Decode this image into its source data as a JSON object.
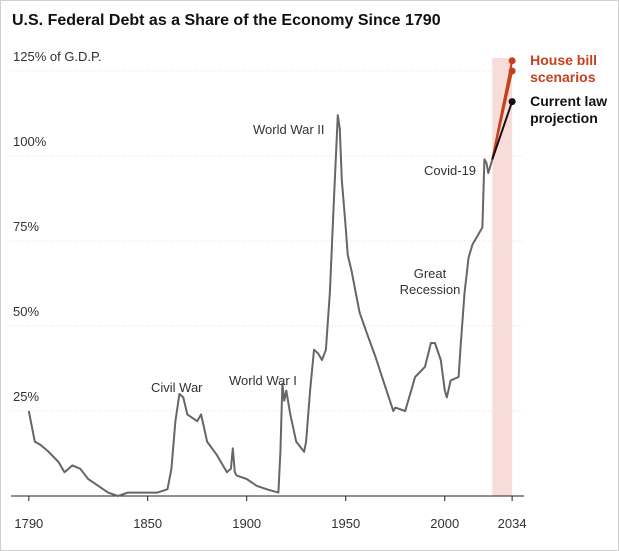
{
  "chart_data": {
    "type": "line",
    "title": "U.S. Federal Debt as a Share of the Economy Since 1790",
    "xlim": [
      1781,
      2040
    ],
    "ylim": [
      0,
      130
    ],
    "xticks": [
      1790,
      1850,
      1900,
      1950,
      2000,
      2034
    ],
    "yticks": [
      {
        "value": 25,
        "label": "25%"
      },
      {
        "value": 50,
        "label": "50%"
      },
      {
        "value": 75,
        "label": "75%"
      },
      {
        "value": 100,
        "label": "100%"
      },
      {
        "value": 125,
        "label": "125% of G.D.P."
      }
    ],
    "grid": true,
    "highlight": {
      "x": [
        2024,
        2034
      ],
      "color": "#f7dcd7"
    },
    "annotations": [
      "World War II",
      "Covid-19",
      "Great Recession",
      "World War I",
      "Civil War"
    ],
    "series": [
      {
        "color": "#666666",
        "x": [
          1790,
          1793,
          1796,
          1800,
          1805,
          1808,
          1812,
          1816,
          1820,
          1825,
          1830,
          1835,
          1840,
          1845,
          1850,
          1855,
          1860,
          1862,
          1864,
          1866,
          1868,
          1870,
          1875,
          1877,
          1880,
          1885,
          1890,
          1892,
          1893,
          1894,
          1895,
          1900,
          1905,
          1910,
          1916,
          1917,
          1918,
          1919,
          1920,
          1922,
          1925,
          1929,
          1930,
          1932,
          1934,
          1936,
          1938,
          1940,
          1942,
          1944,
          1946,
          1947,
          1948,
          1950,
          1951,
          1953,
          1955,
          1957,
          1960,
          1965,
          1970,
          1974,
          1975,
          1980,
          1985,
          1990,
          1993,
          1995,
          1998,
          2000,
          2001,
          2003,
          2007,
          2008,
          2009,
          2010,
          2011,
          2012,
          2014,
          2016,
          2019,
          2020,
          2021,
          2022,
          2023,
          2024
        ],
        "values": [
          25,
          16,
          15,
          13,
          10,
          7,
          9,
          8,
          5,
          3,
          1,
          0,
          1,
          1,
          1,
          1,
          2,
          8,
          22,
          30,
          29,
          24,
          22,
          24,
          16,
          12,
          7,
          8,
          14,
          7,
          6,
          5,
          3,
          2,
          1,
          13,
          33,
          28,
          31,
          24,
          16,
          13,
          16,
          31,
          43,
          42,
          40,
          43,
          60,
          87,
          112,
          108,
          93,
          79,
          71,
          66,
          60,
          54,
          49,
          41,
          32,
          25,
          26,
          25,
          35,
          38,
          45,
          45,
          40,
          31,
          29,
          34,
          35,
          44,
          52,
          60,
          65,
          70,
          74,
          76,
          79,
          99,
          98,
          95,
          97,
          99
        ]
      },
      {
        "name": "House bill scenarios",
        "color": "#c4401f",
        "x": [
          2024,
          2034
        ],
        "values": [
          99,
          128
        ]
      },
      {
        "color": "#c4401f",
        "x": [
          2024,
          2034
        ],
        "values": [
          99,
          125
        ]
      },
      {
        "name": "Current law projection",
        "color": "#111111",
        "x": [
          2024,
          2034
        ],
        "values": [
          99,
          116
        ]
      }
    ]
  }
}
